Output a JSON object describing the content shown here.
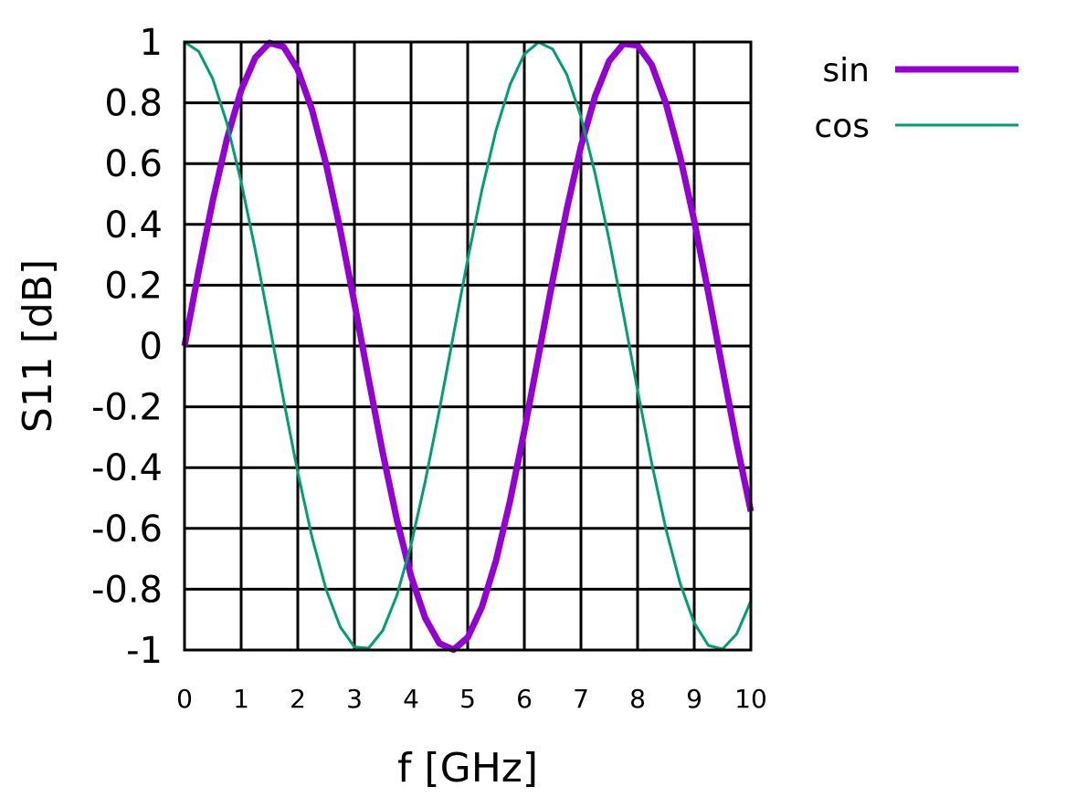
{
  "chart_data": {
    "type": "line",
    "title": "",
    "xlabel": "f [GHz]",
    "ylabel": "S11 [dB]",
    "xlim": [
      0,
      10
    ],
    "ylim": [
      -1,
      1
    ],
    "xticks": [
      "0",
      "1",
      "2",
      "3",
      "4",
      "5",
      "6",
      "7",
      "8",
      "9",
      "10"
    ],
    "yticks": [
      "1",
      "0.8",
      "0.6",
      "0.4",
      "0.2",
      "0",
      "-0.2",
      "-0.4",
      "-0.6",
      "-0.8",
      "-1"
    ],
    "grid": true,
    "legend_position": "outside top-right",
    "x": [
      0,
      0.25,
      0.5,
      0.75,
      1,
      1.25,
      1.5,
      1.75,
      2,
      2.25,
      2.5,
      2.75,
      3,
      3.25,
      3.5,
      3.75,
      4,
      4.25,
      4.5,
      4.75,
      5,
      5.25,
      5.5,
      5.75,
      6,
      6.25,
      6.5,
      6.75,
      7,
      7.25,
      7.5,
      7.75,
      8,
      8.25,
      8.5,
      8.75,
      9,
      9.25,
      9.5,
      9.75,
      10
    ],
    "series": [
      {
        "name": "sin",
        "color": "#9400D3",
        "line_weight": "thick",
        "values": [
          0,
          0.247,
          0.479,
          0.682,
          0.841,
          0.949,
          0.997,
          0.984,
          0.909,
          0.778,
          0.598,
          0.382,
          0.141,
          -0.108,
          -0.351,
          -0.572,
          -0.757,
          -0.895,
          -0.978,
          -0.999,
          -0.959,
          -0.859,
          -0.706,
          -0.508,
          -0.279,
          -0.033,
          0.215,
          0.45,
          0.657,
          0.822,
          0.938,
          0.994,
          0.989,
          0.925,
          0.798,
          0.624,
          0.412,
          0.174,
          -0.075,
          -0.32,
          -0.544
        ]
      },
      {
        "name": "cos",
        "color": "#009E73",
        "line_weight": "thin",
        "values": [
          1,
          0.969,
          0.878,
          0.732,
          0.54,
          0.315,
          0.071,
          -0.178,
          -0.416,
          -0.628,
          -0.801,
          -0.924,
          -0.99,
          -0.994,
          -0.936,
          -0.82,
          -0.654,
          -0.446,
          -0.211,
          0.038,
          0.284,
          0.512,
          0.709,
          0.861,
          0.96,
          0.999,
          0.977,
          0.893,
          0.754,
          0.567,
          0.347,
          0.105,
          -0.146,
          -0.386,
          -0.602,
          -0.78,
          -0.911,
          -0.985,
          -0.997,
          -0.947,
          -0.839
        ]
      }
    ]
  }
}
